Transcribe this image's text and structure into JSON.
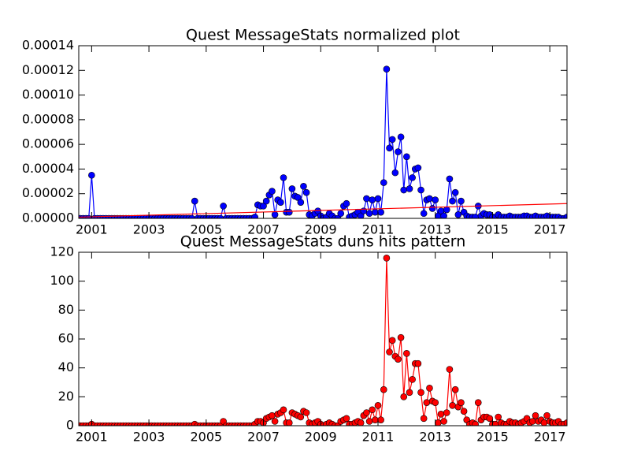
{
  "chart_data": [
    {
      "type": "line",
      "title": "Quest MessageStats normalized plot",
      "xlim": [
        2000.55,
        2017.6
      ],
      "xticks": [
        2001,
        2003,
        2005,
        2007,
        2009,
        2011,
        2013,
        2015,
        2017
      ],
      "ylim": [
        0,
        0.00014
      ],
      "yticks": [
        {
          "value": 0,
          "label": "0.00000"
        },
        {
          "value": 2e-05,
          "label": "0.00002"
        },
        {
          "value": 4e-05,
          "label": "0.00004"
        },
        {
          "value": 6e-05,
          "label": "0.00006"
        },
        {
          "value": 8e-05,
          "label": "0.00008"
        },
        {
          "value": 0.0001,
          "label": "0.00010"
        },
        {
          "value": 0.00012,
          "label": "0.00012"
        },
        {
          "value": 0.00014,
          "label": "0.00014"
        }
      ],
      "series": [
        {
          "color": "#0000ff",
          "markers": true,
          "x": [
            2000.6,
            2000.7,
            2000.8,
            2000.9,
            2001.0,
            2001.1,
            2001.2,
            2001.3,
            2001.4,
            2001.5,
            2001.6,
            2001.7,
            2001.8,
            2001.9,
            2002.0,
            2002.1,
            2002.2,
            2002.3,
            2002.4,
            2002.5,
            2002.6,
            2002.7,
            2002.8,
            2002.9,
            2003.0,
            2003.1,
            2003.2,
            2003.3,
            2003.4,
            2003.5,
            2003.6,
            2003.7,
            2003.8,
            2003.9,
            2004.0,
            2004.1,
            2004.2,
            2004.3,
            2004.4,
            2004.5,
            2004.6,
            2004.7,
            2004.8,
            2004.9,
            2005.0,
            2005.1,
            2005.2,
            2005.3,
            2005.4,
            2005.5,
            2005.6,
            2005.7,
            2005.8,
            2005.9,
            2006.0,
            2006.1,
            2006.2,
            2006.3,
            2006.4,
            2006.5,
            2006.6,
            2006.7,
            2006.8,
            2006.9,
            2007.0,
            2007.1,
            2007.2,
            2007.3,
            2007.4,
            2007.5,
            2007.6,
            2007.7,
            2007.8,
            2007.9,
            2008.0,
            2008.1,
            2008.2,
            2008.3,
            2008.4,
            2008.5,
            2008.6,
            2008.7,
            2008.8,
            2008.9,
            2009.0,
            2009.1,
            2009.2,
            2009.3,
            2009.4,
            2009.5,
            2009.6,
            2009.7,
            2009.8,
            2009.9,
            2010.0,
            2010.1,
            2010.2,
            2010.3,
            2010.4,
            2010.5,
            2010.6,
            2010.7,
            2010.8,
            2010.9,
            2011.0,
            2011.1,
            2011.2,
            2011.3,
            2011.4,
            2011.5,
            2011.6,
            2011.7,
            2011.8,
            2011.9,
            2012.0,
            2012.1,
            2012.2,
            2012.3,
            2012.4,
            2012.5,
            2012.6,
            2012.7,
            2012.8,
            2012.9,
            2013.0,
            2013.1,
            2013.2,
            2013.3,
            2013.4,
            2013.5,
            2013.6,
            2013.7,
            2013.8,
            2013.9,
            2014.0,
            2014.1,
            2014.2,
            2014.3,
            2014.4,
            2014.5,
            2014.6,
            2014.7,
            2014.8,
            2014.9,
            2015.0,
            2015.1,
            2015.2,
            2015.3,
            2015.4,
            2015.5,
            2015.6,
            2015.7,
            2015.8,
            2015.9,
            2016.0,
            2016.1,
            2016.2,
            2016.3,
            2016.4,
            2016.5,
            2016.6,
            2016.7,
            2016.8,
            2016.9,
            2017.0,
            2017.1,
            2017.2,
            2017.3,
            2017.4,
            2017.5,
            2017.6
          ],
          "values": [
            0,
            0,
            0,
            0,
            3.5e-05,
            0,
            0,
            0,
            0,
            0,
            0,
            0,
            0,
            0,
            0,
            0,
            0,
            0,
            0,
            0,
            0,
            0,
            0,
            0,
            0,
            0,
            0,
            0,
            0,
            0,
            0,
            0,
            0,
            0,
            0,
            0,
            0,
            0,
            0,
            0,
            1.4e-05,
            0,
            0,
            0,
            0,
            0,
            0,
            0,
            0,
            0,
            1e-05,
            0,
            0,
            0,
            0,
            0,
            0,
            0,
            0,
            0,
            0,
            1e-06,
            1.1e-05,
            1e-05,
            1e-05,
            1.4e-05,
            1.9e-05,
            2.2e-05,
            3e-06,
            1.5e-05,
            1.3e-05,
            3.3e-05,
            5e-06,
            5e-06,
            2.4e-05,
            1.8e-05,
            1.7e-05,
            1.3e-05,
            2.6e-05,
            2.1e-05,
            3e-06,
            2e-06,
            4e-06,
            6e-06,
            2e-06,
            0,
            1e-06,
            4e-06,
            2e-06,
            0,
            0,
            4e-06,
            1e-05,
            1.2e-05,
            1e-06,
            2e-06,
            3e-06,
            5e-06,
            2e-06,
            6e-06,
            1.6e-05,
            4e-06,
            1.5e-05,
            5e-06,
            1.6e-05,
            5e-06,
            2.9e-05,
            0.000121,
            5.7e-05,
            6.4e-05,
            3.7e-05,
            5.4e-05,
            6.6e-05,
            2.3e-05,
            5e-05,
            2.4e-05,
            3.3e-05,
            4e-05,
            4.1e-05,
            2.3e-05,
            4e-06,
            1.5e-05,
            1.6e-05,
            8e-06,
            1.5e-05,
            2e-06,
            6e-06,
            2e-06,
            7e-06,
            3.2e-05,
            1.4e-05,
            2.1e-05,
            3e-06,
            1.4e-05,
            5e-06,
            2e-06,
            1e-06,
            1e-06,
            1e-06,
            1e-05,
            2e-06,
            4e-06,
            3e-06,
            3e-06,
            1e-06,
            1e-06,
            3e-06,
            1e-06,
            1e-06,
            1e-06,
            2e-06,
            1e-06,
            1e-06,
            1e-06,
            1e-06,
            2e-06,
            2e-06,
            1e-06,
            1e-06,
            2e-06,
            1e-06,
            1e-06,
            1e-06,
            2e-06,
            1e-06,
            1e-06,
            1e-06,
            1e-06,
            0,
            0,
            1e-06
          ]
        },
        {
          "color": "#ff0000",
          "markers": false,
          "x": [
            2000.55,
            2017.6
          ],
          "values": [
            1e-06,
            1.2e-05
          ]
        }
      ]
    },
    {
      "type": "line",
      "title": "Quest MessageStats duns hits pattern",
      "xlim": [
        2000.55,
        2017.6
      ],
      "xticks": [
        2001,
        2003,
        2005,
        2007,
        2009,
        2011,
        2013,
        2015,
        2017
      ],
      "ylim": [
        0,
        120
      ],
      "yticks": [
        0,
        20,
        40,
        60,
        80,
        100,
        120
      ],
      "series": [
        {
          "color": "#ff0000",
          "markers": true,
          "x": [
            2000.6,
            2000.7,
            2000.8,
            2000.9,
            2001.0,
            2001.1,
            2001.2,
            2001.3,
            2001.4,
            2001.5,
            2001.6,
            2001.7,
            2001.8,
            2001.9,
            2002.0,
            2002.1,
            2002.2,
            2002.3,
            2002.4,
            2002.5,
            2002.6,
            2002.7,
            2002.8,
            2002.9,
            2003.0,
            2003.1,
            2003.2,
            2003.3,
            2003.4,
            2003.5,
            2003.6,
            2003.7,
            2003.8,
            2003.9,
            2004.0,
            2004.1,
            2004.2,
            2004.3,
            2004.4,
            2004.5,
            2004.6,
            2004.7,
            2004.8,
            2004.9,
            2005.0,
            2005.1,
            2005.2,
            2005.3,
            2005.4,
            2005.5,
            2005.6,
            2005.7,
            2005.8,
            2005.9,
            2006.0,
            2006.1,
            2006.2,
            2006.3,
            2006.4,
            2006.5,
            2006.6,
            2006.7,
            2006.8,
            2006.9,
            2007.0,
            2007.1,
            2007.2,
            2007.3,
            2007.4,
            2007.5,
            2007.6,
            2007.7,
            2007.8,
            2007.9,
            2008.0,
            2008.1,
            2008.2,
            2008.3,
            2008.4,
            2008.5,
            2008.6,
            2008.7,
            2008.8,
            2008.9,
            2009.0,
            2009.1,
            2009.2,
            2009.3,
            2009.4,
            2009.5,
            2009.6,
            2009.7,
            2009.8,
            2009.9,
            2010.0,
            2010.1,
            2010.2,
            2010.3,
            2010.4,
            2010.5,
            2010.6,
            2010.7,
            2010.8,
            2010.9,
            2011.0,
            2011.1,
            2011.2,
            2011.3,
            2011.4,
            2011.5,
            2011.6,
            2011.7,
            2011.8,
            2011.9,
            2012.0,
            2012.1,
            2012.2,
            2012.3,
            2012.4,
            2012.5,
            2012.6,
            2012.7,
            2012.8,
            2012.9,
            2013.0,
            2013.1,
            2013.2,
            2013.3,
            2013.4,
            2013.5,
            2013.6,
            2013.7,
            2013.8,
            2013.9,
            2014.0,
            2014.1,
            2014.2,
            2014.3,
            2014.4,
            2014.5,
            2014.6,
            2014.7,
            2014.8,
            2014.9,
            2015.0,
            2015.1,
            2015.2,
            2015.3,
            2015.4,
            2015.5,
            2015.6,
            2015.7,
            2015.8,
            2015.9,
            2016.0,
            2016.1,
            2016.2,
            2016.3,
            2016.4,
            2016.5,
            2016.6,
            2016.7,
            2016.8,
            2016.9,
            2017.0,
            2017.1,
            2017.2,
            2017.3,
            2017.4,
            2017.5,
            2017.6
          ],
          "values": [
            0,
            0,
            0,
            0,
            1,
            0,
            0,
            0,
            0,
            0,
            0,
            0,
            0,
            0,
            0,
            0,
            0,
            0,
            0,
            0,
            0,
            0,
            0,
            0,
            0,
            0,
            0,
            0,
            0,
            0,
            0,
            0,
            0,
            0,
            0,
            0,
            0,
            0,
            0,
            0,
            1,
            0,
            0,
            0,
            0,
            0,
            0,
            0,
            0,
            0,
            3,
            0,
            0,
            0,
            0,
            0,
            0,
            0,
            0,
            0,
            0,
            1,
            3,
            3,
            2,
            5,
            6,
            7,
            3,
            8,
            9,
            11,
            2,
            2,
            9,
            8,
            7,
            6,
            10,
            9,
            2,
            1,
            2,
            3,
            1,
            0,
            1,
            2,
            1,
            0,
            0,
            3,
            4,
            5,
            1,
            1,
            2,
            3,
            2,
            7,
            9,
            3,
            11,
            4,
            14,
            4,
            25,
            116,
            51,
            59,
            48,
            46,
            61,
            20,
            50,
            23,
            32,
            43,
            43,
            23,
            5,
            16,
            26,
            17,
            16,
            2,
            8,
            3,
            9,
            39,
            14,
            25,
            13,
            16,
            10,
            4,
            1,
            2,
            1,
            16,
            4,
            6,
            6,
            5,
            1,
            1,
            6,
            2,
            1,
            1,
            3,
            2,
            2,
            1,
            2,
            3,
            5,
            2,
            3,
            7,
            3,
            4,
            2,
            7,
            3,
            2,
            2,
            3,
            1,
            1,
            2
          ]
        }
      ]
    }
  ]
}
